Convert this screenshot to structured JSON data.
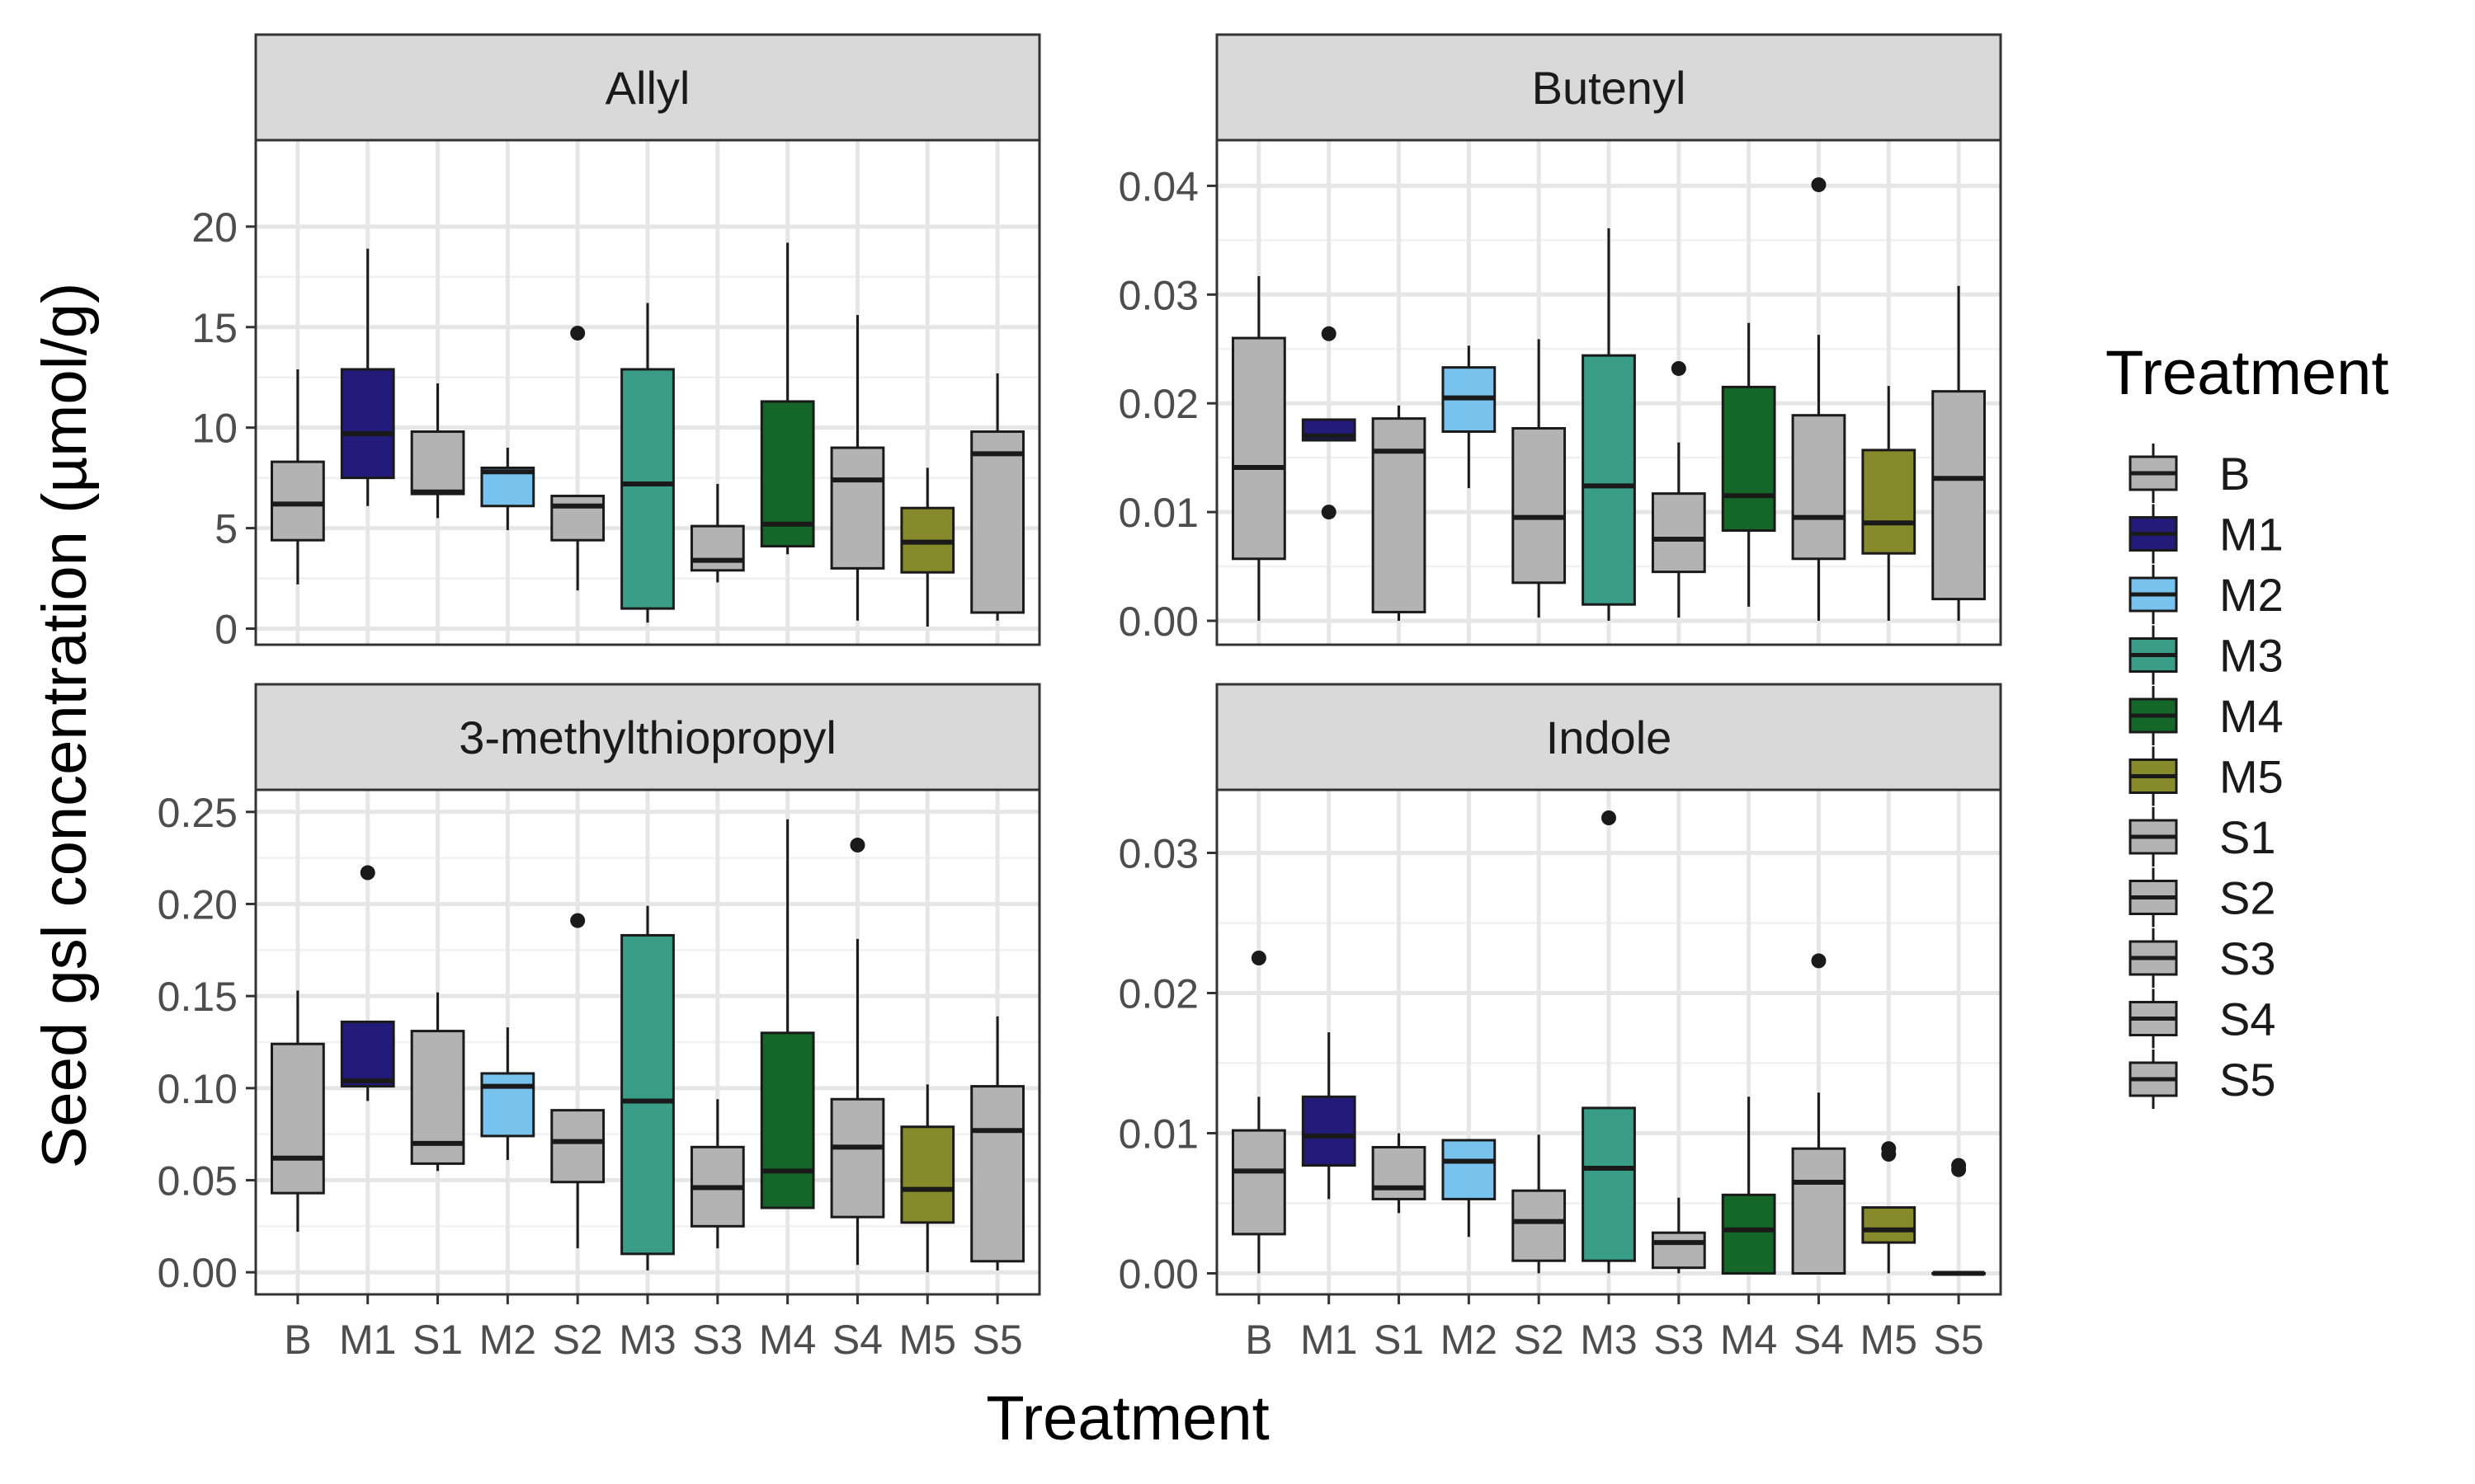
{
  "chart_data": {
    "type": "boxplot",
    "facet_layout": "2x2",
    "xlabel": "Treatment",
    "ylabel": "Seed gsl concentration (µmol/g)",
    "categories": [
      "B",
      "M1",
      "S1",
      "M2",
      "S2",
      "M3",
      "S3",
      "M4",
      "S4",
      "M5",
      "S5"
    ],
    "colors": {
      "B": "#b3b3b3",
      "M1": "#221b7a",
      "M2": "#78c3ee",
      "M3": "#3a9d88",
      "M4": "#146629",
      "M5": "#878a2b",
      "S1": "#b3b3b3",
      "S2": "#b3b3b3",
      "S3": "#b3b3b3",
      "S4": "#b3b3b3",
      "S5": "#b3b3b3"
    },
    "legend": {
      "title": "Treatment",
      "placement": "right",
      "entries": [
        "B",
        "M1",
        "M2",
        "M3",
        "M4",
        "M5",
        "S1",
        "S2",
        "S3",
        "S4",
        "S5"
      ]
    },
    "grid": true,
    "panels": [
      {
        "title": "Allyl",
        "ylim": [
          -0.8,
          24.3
        ],
        "yticks": [
          "0",
          "5",
          "10",
          "15",
          "20"
        ],
        "ytick_values": [
          0,
          5,
          10,
          15,
          20
        ],
        "boxes": [
          {
            "cat": "B",
            "min": 2.2,
            "q1": 4.4,
            "median": 6.2,
            "q3": 8.3,
            "max": 12.9,
            "outliers": []
          },
          {
            "cat": "M1",
            "min": 6.1,
            "q1": 7.5,
            "median": 9.7,
            "q3": 12.9,
            "max": 18.9,
            "outliers": []
          },
          {
            "cat": "S1",
            "min": 5.5,
            "q1": 6.7,
            "median": 6.8,
            "q3": 9.8,
            "max": 12.2,
            "outliers": []
          },
          {
            "cat": "M2",
            "min": 4.9,
            "q1": 6.1,
            "median": 7.8,
            "q3": 8.0,
            "max": 9.0,
            "outliers": []
          },
          {
            "cat": "S2",
            "min": 1.9,
            "q1": 4.4,
            "median": 6.1,
            "q3": 6.6,
            "max": 6.6,
            "outliers": [
              14.7
            ]
          },
          {
            "cat": "M3",
            "min": 0.3,
            "q1": 1.0,
            "median": 7.2,
            "q3": 12.9,
            "max": 16.2,
            "outliers": []
          },
          {
            "cat": "S3",
            "min": 2.3,
            "q1": 2.9,
            "median": 3.4,
            "q3": 5.1,
            "max": 7.2,
            "outliers": []
          },
          {
            "cat": "M4",
            "min": 3.7,
            "q1": 4.1,
            "median": 5.2,
            "q3": 11.3,
            "max": 19.2,
            "outliers": []
          },
          {
            "cat": "S4",
            "min": 0.4,
            "q1": 3.0,
            "median": 7.4,
            "q3": 9.0,
            "max": 15.6,
            "outliers": []
          },
          {
            "cat": "M5",
            "min": 0.1,
            "q1": 2.8,
            "median": 4.3,
            "q3": 6.0,
            "max": 8.0,
            "outliers": []
          },
          {
            "cat": "S5",
            "min": 0.4,
            "q1": 0.8,
            "median": 8.7,
            "q3": 9.8,
            "max": 12.7,
            "outliers": []
          }
        ]
      },
      {
        "title": "Butenyl",
        "ylim": [
          -0.0022,
          0.0442
        ],
        "yticks": [
          "0.00",
          "0.01",
          "0.02",
          "0.03",
          "0.04"
        ],
        "ytick_values": [
          0,
          0.01,
          0.02,
          0.03,
          0.04
        ],
        "boxes": [
          {
            "cat": "B",
            "min": 0.0,
            "q1": 0.0057,
            "median": 0.0141,
            "q3": 0.026,
            "max": 0.0317,
            "outliers": []
          },
          {
            "cat": "M1",
            "min": 0.0166,
            "q1": 0.0166,
            "median": 0.017,
            "q3": 0.0185,
            "max": 0.0185,
            "outliers": [
              0.0264,
              0.01
            ]
          },
          {
            "cat": "S1",
            "min": 0.0,
            "q1": 0.0008,
            "median": 0.0156,
            "q3": 0.0186,
            "max": 0.0198,
            "outliers": []
          },
          {
            "cat": "M2",
            "min": 0.0122,
            "q1": 0.0174,
            "median": 0.0205,
            "q3": 0.0233,
            "max": 0.0253,
            "outliers": []
          },
          {
            "cat": "S2",
            "min": 0.0003,
            "q1": 0.0035,
            "median": 0.0095,
            "q3": 0.0177,
            "max": 0.0259,
            "outliers": []
          },
          {
            "cat": "M3",
            "min": 0.0,
            "q1": 0.0015,
            "median": 0.0124,
            "q3": 0.0244,
            "max": 0.0361,
            "outliers": []
          },
          {
            "cat": "S3",
            "min": 0.0003,
            "q1": 0.0045,
            "median": 0.0075,
            "q3": 0.0117,
            "max": 0.0164,
            "outliers": [
              0.0232
            ]
          },
          {
            "cat": "M4",
            "min": 0.0013,
            "q1": 0.0083,
            "median": 0.0115,
            "q3": 0.0215,
            "max": 0.0274,
            "outliers": []
          },
          {
            "cat": "S4",
            "min": 0.0,
            "q1": 0.0057,
            "median": 0.0095,
            "q3": 0.0189,
            "max": 0.0263,
            "outliers": [
              0.0401
            ]
          },
          {
            "cat": "M5",
            "min": 0.0,
            "q1": 0.0062,
            "median": 0.009,
            "q3": 0.0157,
            "max": 0.0216,
            "outliers": []
          },
          {
            "cat": "S5",
            "min": 0.0,
            "q1": 0.002,
            "median": 0.0131,
            "q3": 0.0211,
            "max": 0.0308,
            "outliers": []
          }
        ]
      },
      {
        "title": "3-methylthiopropyl",
        "ylim": [
          -0.012,
          0.262
        ],
        "yticks": [
          "0.00",
          "0.05",
          "0.10",
          "0.15",
          "0.20",
          "0.25"
        ],
        "ytick_values": [
          0,
          0.05,
          0.1,
          0.15,
          0.2,
          0.25
        ],
        "boxes": [
          {
            "cat": "B",
            "min": 0.022,
            "q1": 0.043,
            "median": 0.062,
            "q3": 0.124,
            "max": 0.153,
            "outliers": []
          },
          {
            "cat": "M1",
            "min": 0.093,
            "q1": 0.101,
            "median": 0.104,
            "q3": 0.136,
            "max": 0.136,
            "outliers": [
              0.217
            ]
          },
          {
            "cat": "S1",
            "min": 0.055,
            "q1": 0.059,
            "median": 0.07,
            "q3": 0.131,
            "max": 0.152,
            "outliers": []
          },
          {
            "cat": "M2",
            "min": 0.061,
            "q1": 0.074,
            "median": 0.101,
            "q3": 0.108,
            "max": 0.133,
            "outliers": []
          },
          {
            "cat": "S2",
            "min": 0.013,
            "q1": 0.049,
            "median": 0.071,
            "q3": 0.088,
            "max": 0.088,
            "outliers": [
              0.191
            ]
          },
          {
            "cat": "M3",
            "min": 0.001,
            "q1": 0.01,
            "median": 0.093,
            "q3": 0.183,
            "max": 0.199,
            "outliers": []
          },
          {
            "cat": "S3",
            "min": 0.013,
            "q1": 0.025,
            "median": 0.046,
            "q3": 0.068,
            "max": 0.094,
            "outliers": []
          },
          {
            "cat": "M4",
            "min": 0.035,
            "q1": 0.035,
            "median": 0.055,
            "q3": 0.13,
            "max": 0.246,
            "outliers": []
          },
          {
            "cat": "S4",
            "min": 0.004,
            "q1": 0.03,
            "median": 0.068,
            "q3": 0.094,
            "max": 0.181,
            "outliers": [
              0.232
            ]
          },
          {
            "cat": "M5",
            "min": 0.0,
            "q1": 0.027,
            "median": 0.045,
            "q3": 0.079,
            "max": 0.102,
            "outliers": []
          },
          {
            "cat": "S5",
            "min": 0.001,
            "q1": 0.006,
            "median": 0.077,
            "q3": 0.101,
            "max": 0.139,
            "outliers": []
          }
        ]
      },
      {
        "title": "Indole",
        "ylim": [
          -0.0015,
          0.0345
        ],
        "yticks": [
          "0.00",
          "0.01",
          "0.02",
          "0.03"
        ],
        "ytick_values": [
          0,
          0.01,
          0.02,
          0.03
        ],
        "boxes": [
          {
            "cat": "B",
            "min": 0.0,
            "q1": 0.0028,
            "median": 0.0073,
            "q3": 0.0102,
            "max": 0.0126,
            "outliers": [
              0.0225
            ]
          },
          {
            "cat": "M1",
            "min": 0.0053,
            "q1": 0.0077,
            "median": 0.0098,
            "q3": 0.0126,
            "max": 0.0172,
            "outliers": []
          },
          {
            "cat": "S1",
            "min": 0.0043,
            "q1": 0.0053,
            "median": 0.0061,
            "q3": 0.009,
            "max": 0.01,
            "outliers": []
          },
          {
            "cat": "M2",
            "min": 0.0026,
            "q1": 0.0053,
            "median": 0.008,
            "q3": 0.0095,
            "max": 0.0095,
            "outliers": []
          },
          {
            "cat": "S2",
            "min": 0.0,
            "q1": 0.0009,
            "median": 0.0037,
            "q3": 0.0059,
            "max": 0.0099,
            "outliers": []
          },
          {
            "cat": "M3",
            "min": 0.0,
            "q1": 0.0009,
            "median": 0.0075,
            "q3": 0.0118,
            "max": 0.0118,
            "outliers": [
              0.0325
            ]
          },
          {
            "cat": "S3",
            "min": 0.0,
            "q1": 0.0004,
            "median": 0.0022,
            "q3": 0.0029,
            "max": 0.0054,
            "outliers": []
          },
          {
            "cat": "M4",
            "min": 0.0,
            "q1": 0.0,
            "median": 0.0031,
            "q3": 0.0056,
            "max": 0.0126,
            "outliers": []
          },
          {
            "cat": "S4",
            "min": 0.0,
            "q1": 0.0,
            "median": 0.0065,
            "q3": 0.0089,
            "max": 0.0129,
            "outliers": [
              0.0223
            ]
          },
          {
            "cat": "M5",
            "min": 0.0,
            "q1": 0.0022,
            "median": 0.0031,
            "q3": 0.0047,
            "max": 0.0047,
            "outliers": [
              0.0089,
              0.0085
            ]
          },
          {
            "cat": "S5",
            "min": 0.0,
            "q1": 0.0,
            "median": 0.0,
            "q3": 0.0,
            "max": 0.0,
            "outliers": [
              0.0077,
              0.0074
            ]
          }
        ]
      }
    ]
  }
}
